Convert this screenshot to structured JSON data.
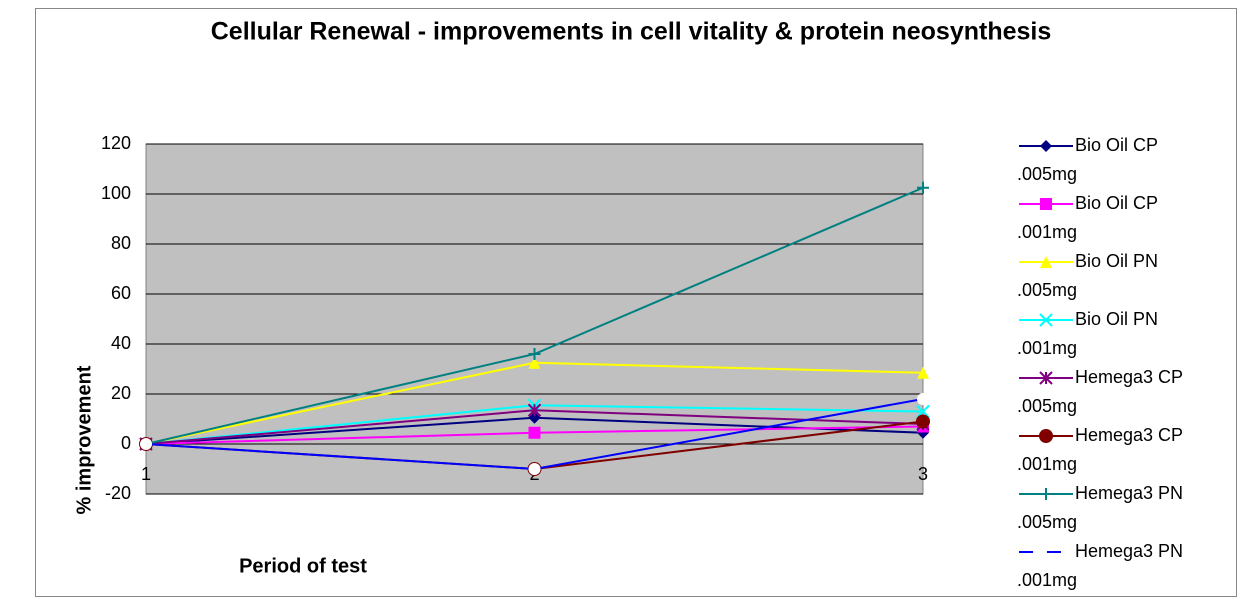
{
  "chart_data": {
    "type": "line",
    "title": "Cellular Renewal - improvements in cell vitality & protein neosynthesis",
    "x_label": "Period of test",
    "y_label": "% improvement",
    "categories": [
      "1",
      "2",
      "3"
    ],
    "ylim": [
      -20,
      120
    ],
    "yticks": [
      -20,
      0,
      20,
      40,
      60,
      80,
      100,
      120
    ],
    "grid": true,
    "series": [
      {
        "name": "Bio Oil CP .005mg",
        "color": "#000080",
        "marker": "diamond",
        "values": [
          0,
          10.5,
          4.5
        ]
      },
      {
        "name": "Bio Oil CP .001mg",
        "color": "#ff00ff",
        "marker": "square",
        "values": [
          0,
          4.5,
          7
        ]
      },
      {
        "name": "Bio Oil PN .005mg",
        "color": "#ffff00",
        "marker": "triangle",
        "values": [
          0,
          32.5,
          28.5
        ]
      },
      {
        "name": "Bio Oil PN .001mg",
        "color": "#00ffff",
        "marker": "x",
        "values": [
          0,
          15.5,
          13
        ]
      },
      {
        "name": "Hemega3 CP .005mg",
        "color": "#800080",
        "marker": "asterisk",
        "values": [
          0,
          13.5,
          8
        ]
      },
      {
        "name": "Hemega3 CP .001mg",
        "color": "#800000",
        "marker": "circle",
        "values": [
          0,
          -10,
          9
        ]
      },
      {
        "name": "Hemega3 PN .005mg",
        "color": "#008080",
        "marker": "plus",
        "values": [
          0,
          36,
          102.5
        ]
      },
      {
        "name": "Hemega3 PN .001mg",
        "color": "#0000ff",
        "marker": "open-circle",
        "dash": true,
        "values": [
          0,
          -10,
          18
        ]
      }
    ]
  }
}
